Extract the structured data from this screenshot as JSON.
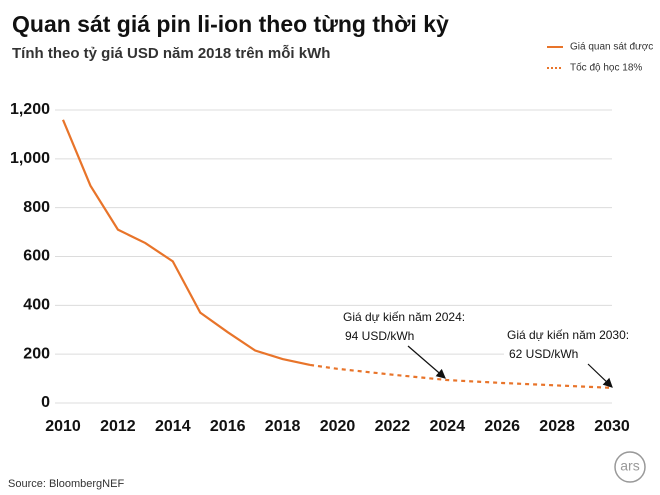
{
  "chart_data": {
    "type": "line",
    "title": "Quan sát giá pin li-ion theo từng thời kỳ",
    "subtitle": "Tính theo tỷ giá USD năm 2018 trên mỗi kWh",
    "x": [
      2010,
      2011,
      2012,
      2013,
      2014,
      2015,
      2016,
      2017,
      2018,
      2019,
      2020,
      2021,
      2022,
      2023,
      2024,
      2025,
      2026,
      2027,
      2028,
      2029,
      2030
    ],
    "series": [
      {
        "name": "Giá quan sát được",
        "color": "#e8742a",
        "dashed": false,
        "values": [
          1160,
          890,
          710,
          655,
          580,
          370,
          290,
          215,
          180,
          156,
          null,
          null,
          null,
          null,
          null,
          null,
          null,
          null,
          null,
          null,
          null
        ]
      },
      {
        "name": "Tốc độ học 18%",
        "color": "#e8742a",
        "dashed": true,
        "values": [
          null,
          null,
          null,
          null,
          null,
          null,
          null,
          null,
          null,
          156,
          140,
          128,
          116,
          105,
          94,
          88,
          82,
          77,
          72,
          67,
          62
        ]
      }
    ],
    "xlim": [
      2010,
      2030
    ],
    "xticks": [
      2010,
      2012,
      2014,
      2016,
      2018,
      2020,
      2022,
      2024,
      2026,
      2028,
      2030
    ],
    "ylim": [
      0,
      1200
    ],
    "yticks": [
      0,
      200,
      400,
      600,
      800,
      {
        "value": 1000,
        "label": "1,000"
      },
      {
        "value": 1200,
        "label": "1,200"
      }
    ],
    "grid": true,
    "legend": "top-right",
    "annotations": [
      [
        "Giá dự kiến năm 2024:",
        "94 USD/kWh"
      ],
      [
        "Giá dự kiến năm 2030:",
        "62 USD/kWh"
      ]
    ],
    "source": "Source: BloombergNEF",
    "logo": "ars"
  }
}
